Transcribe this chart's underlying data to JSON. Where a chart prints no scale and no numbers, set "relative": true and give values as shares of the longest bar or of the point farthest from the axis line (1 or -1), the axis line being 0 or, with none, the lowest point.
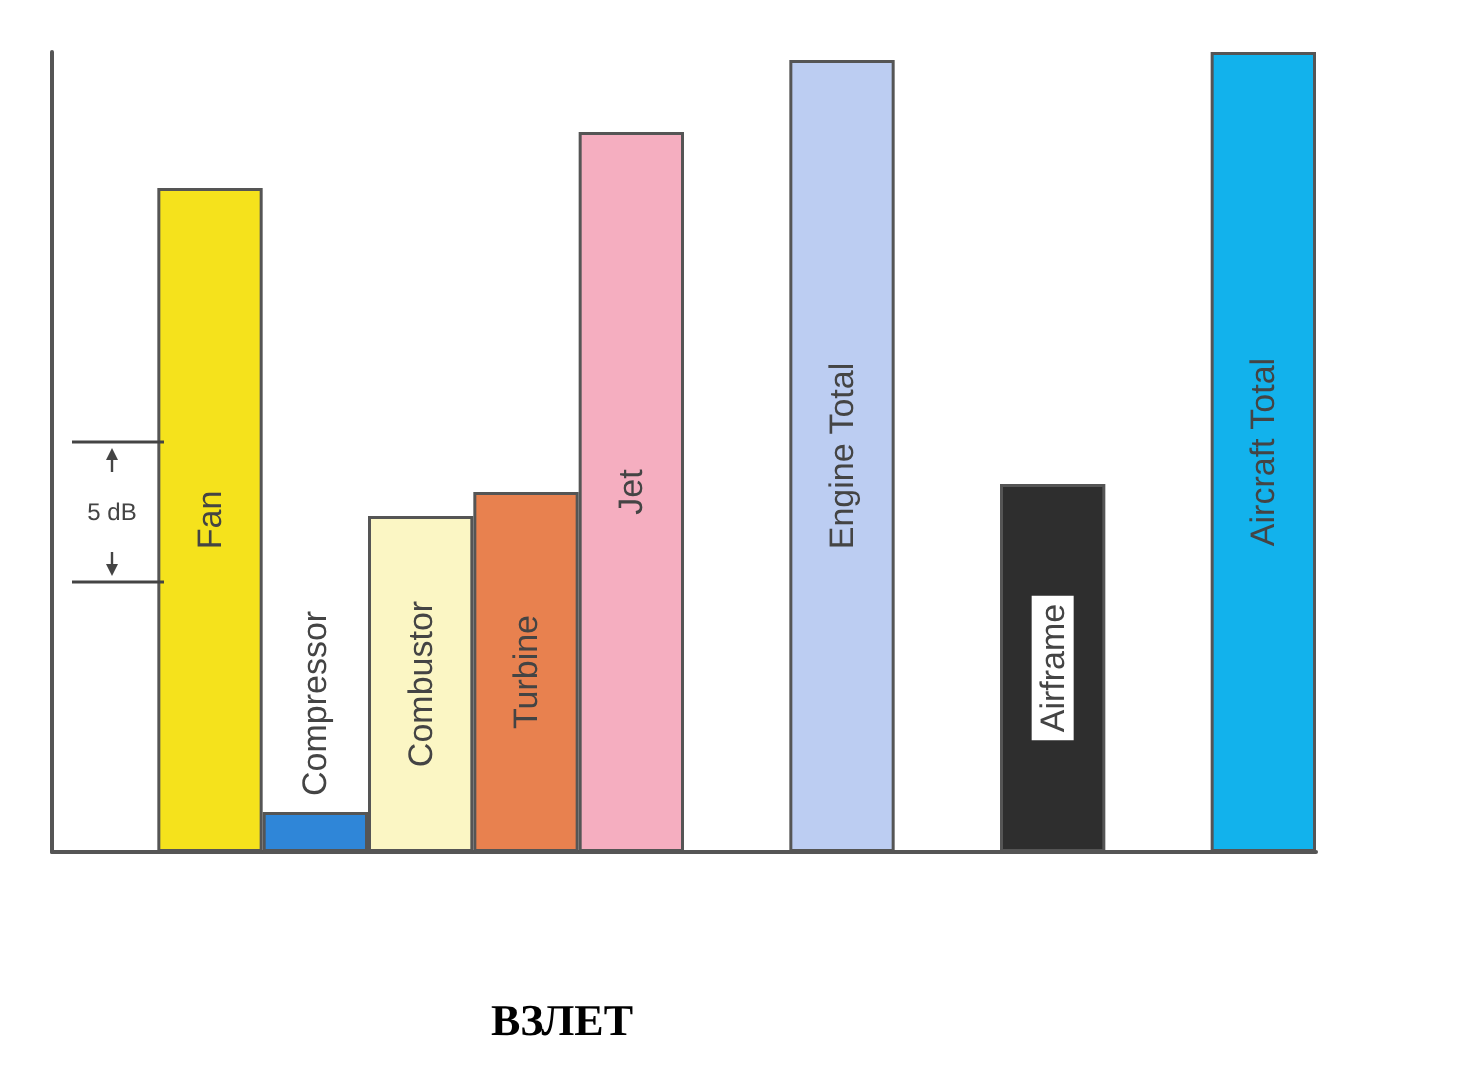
{
  "chart_data": {
    "type": "bar",
    "title": "ВЗЛЕТ",
    "relative": true,
    "categories": [
      null,
      "Fan",
      "Compressor",
      "Combustor",
      "Turbine",
      "Jet",
      null,
      "Engine Total",
      null,
      "Airframe",
      null,
      "Aircraft Total"
    ],
    "values": [
      null,
      0.83,
      0.05,
      0.42,
      0.45,
      0.9,
      null,
      0.99,
      null,
      0.46,
      null,
      1
    ],
    "colors": [
      "#ffffff",
      "#f5e21c",
      "#2f86d8",
      "#fbf6c4",
      "#e8814f",
      "#f5aec0",
      "#ffffff",
      "#bccdf2",
      "#ffffff",
      "#2e2e2e",
      "#ffffff",
      "#12b2ec"
    ],
    "annotations": [
      "5 dB"
    ],
    "grid": false
  }
}
